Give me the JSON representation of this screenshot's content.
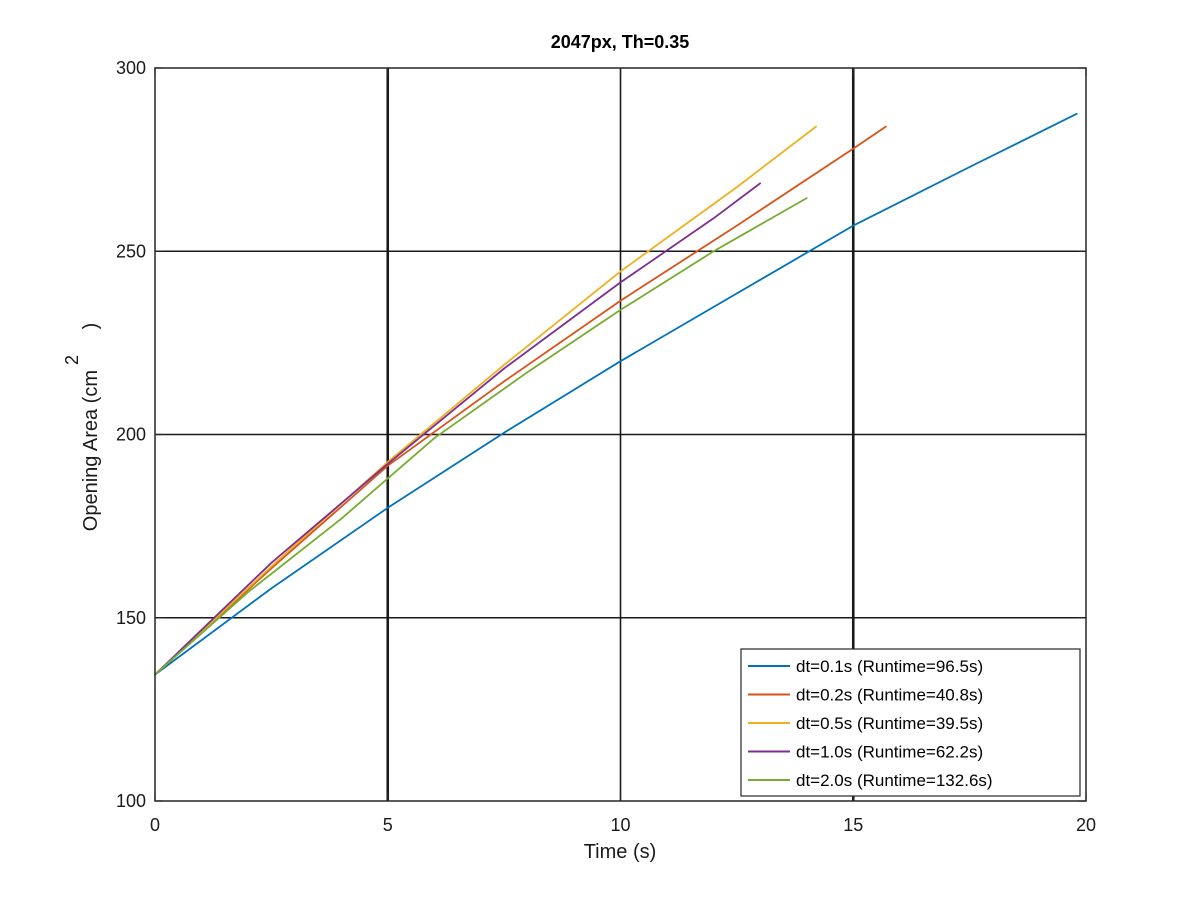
{
  "chart_data": {
    "type": "line",
    "title": "2047px, Th=0.35",
    "xlabel": "Time (s)",
    "ylabel": "Opening Area (cm",
    "ylabel_superscript": "2",
    "ylabel_close": ")",
    "xlim": [
      0,
      20
    ],
    "ylim": [
      100,
      300
    ],
    "xticks": [
      0,
      5,
      10,
      15,
      20
    ],
    "yticks": [
      100,
      150,
      200,
      250,
      300
    ],
    "xtick_labels": [
      "0",
      "5",
      "10",
      "15",
      "20"
    ],
    "ytick_labels": [
      "100",
      "150",
      "200",
      "250",
      "300"
    ],
    "grid": true,
    "legend_position": "bottom-right",
    "series": [
      {
        "name": "dt=0.1s (Runtime=96.5s)",
        "color": "#0072BD",
        "x": [
          0,
          2.5,
          5,
          7.5,
          10,
          12.5,
          15,
          17.5,
          19.8
        ],
        "y": [
          134.5,
          158,
          180,
          200.5,
          220,
          238.5,
          257,
          273,
          287.5
        ]
      },
      {
        "name": "dt=0.2s (Runtime=40.8s)",
        "color": "#D95319",
        "x": [
          0,
          2.5,
          5,
          7.5,
          10,
          12.5,
          15,
          15.7
        ],
        "y": [
          134.5,
          163.5,
          191.5,
          214.5,
          236.5,
          257,
          278,
          284
        ]
      },
      {
        "name": "dt=0.5s (Runtime=39.5s)",
        "color": "#EDB120",
        "x": [
          0,
          2.5,
          5,
          7.5,
          10,
          12.5,
          14.2
        ],
        "y": [
          134.5,
          164,
          192.5,
          219,
          244.5,
          267.5,
          284
        ]
      },
      {
        "name": "dt=1.0s (Runtime=62.2s)",
        "color": "#7E2F8E",
        "x": [
          0,
          2.5,
          5,
          7.5,
          10,
          12,
          13
        ],
        "y": [
          134.5,
          165,
          192,
          218,
          241.5,
          259,
          268.5
        ]
      },
      {
        "name": "dt=2.0s (Runtime=132.6s)",
        "color": "#77AC30",
        "x": [
          0,
          2,
          4,
          6,
          8,
          10,
          12,
          14
        ],
        "y": [
          134.5,
          157,
          177,
          199,
          217,
          234,
          250,
          264.5
        ]
      }
    ]
  }
}
